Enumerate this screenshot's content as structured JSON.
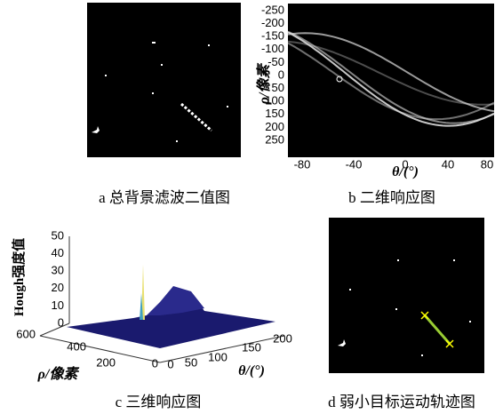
{
  "panels": [
    {
      "caption": "a  总背景滤波二值图"
    },
    {
      "caption": "b  二维响应图",
      "y_label": "ρ/像素",
      "x_label": "θ/(°)",
      "y_ticks": [
        "-250",
        "-200",
        "-150",
        "-100",
        "-50",
        "0",
        "50",
        "100",
        "150",
        "200",
        "250"
      ],
      "x_ticks": [
        "-80",
        "-40",
        "0",
        "40",
        "80"
      ]
    },
    {
      "caption": "c  三维响应图",
      "z_label": "Hough强度值",
      "z_ticks": [
        "0",
        "10",
        "20",
        "30",
        "40",
        "50"
      ],
      "rho_label": "ρ/像素",
      "rho_ticks": [
        "600",
        "400",
        "200",
        "0"
      ],
      "theta_label": "θ/(°)",
      "theta_ticks": [
        "0",
        "50",
        "100",
        "150",
        "200"
      ]
    },
    {
      "caption": "d  弱小目标运动轨迹图"
    }
  ]
}
